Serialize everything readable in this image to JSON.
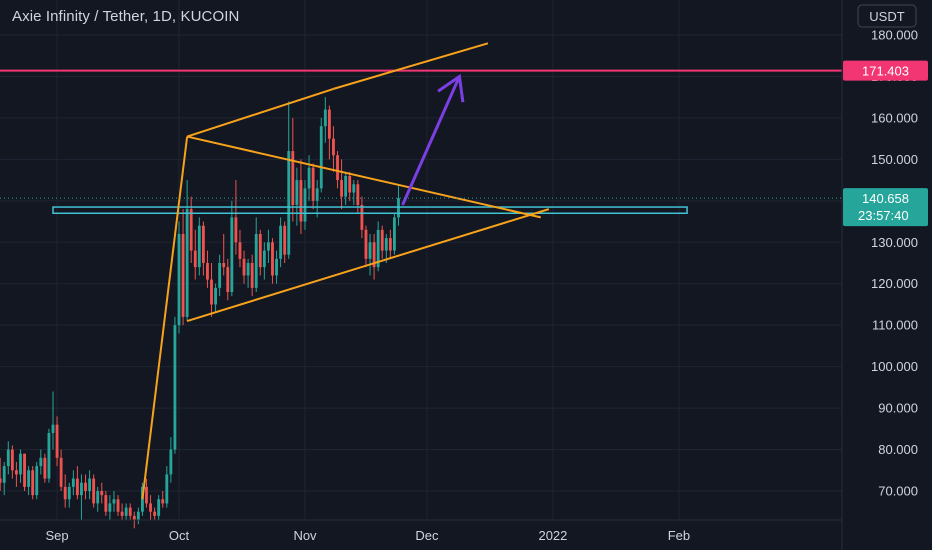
{
  "header": {
    "symbol": "Axie Infinity / Tether",
    "separator": ", ",
    "interval": "1D",
    "exchange": "KUCOIN"
  },
  "currency": "USDT",
  "price_axis": {
    "tick_labels": [
      "180.000",
      "170.000",
      "160.000",
      "150.000",
      "140.000",
      "130.000",
      "120.000",
      "110.000",
      "100.000",
      "90.000",
      "80.000",
      "70.000"
    ]
  },
  "time_axis": {
    "tick_labels": [
      "Sep",
      "Oct",
      "Nov",
      "Dec",
      "2022",
      "Feb"
    ]
  },
  "last_price": {
    "value": "140.658",
    "countdown": "23:57:40",
    "color": "#26a69a"
  },
  "horizontal_level": {
    "value": "171.403",
    "color": "#f23674"
  },
  "colors": {
    "background": "#131722",
    "up_candle": "#26a69a",
    "down_candle": "#ef5350",
    "trendline": "#f7a21b",
    "zone": "#3fc4d4",
    "arrow": "#7b3fe4",
    "grid": "#1f2433"
  },
  "chart_data": {
    "type": "candlestick",
    "title": "Axie Infinity / Tether, 1D, KUCOIN",
    "y_unit": "USDT",
    "ylim": [
      63,
      187
    ],
    "xlim": [
      "2021-08-17",
      "2022-02-28"
    ],
    "grid": true,
    "ohlc": [
      [
        "2021-08-17",
        70,
        75,
        68,
        73
      ],
      [
        "2021-08-18",
        73,
        78,
        70,
        72
      ],
      [
        "2021-08-19",
        72,
        77,
        69,
        76
      ],
      [
        "2021-08-20",
        76,
        82,
        74,
        80
      ],
      [
        "2021-08-21",
        80,
        81,
        73,
        75
      ],
      [
        "2021-08-22",
        75,
        77,
        71,
        74
      ],
      [
        "2021-08-23",
        74,
        80,
        72,
        79
      ],
      [
        "2021-08-24",
        79,
        79,
        70,
        71
      ],
      [
        "2021-08-25",
        71,
        76,
        69,
        75
      ],
      [
        "2021-08-26",
        75,
        76,
        68,
        69
      ],
      [
        "2021-08-27",
        69,
        77,
        68,
        76
      ],
      [
        "2021-08-28",
        76,
        80,
        74,
        78
      ],
      [
        "2021-08-29",
        78,
        79,
        72,
        73
      ],
      [
        "2021-08-30",
        73,
        85,
        72,
        84
      ],
      [
        "2021-08-31",
        84,
        94,
        80,
        86
      ],
      [
        "2021-09-01",
        86,
        88,
        76,
        78
      ],
      [
        "2021-09-02",
        78,
        80,
        70,
        71
      ],
      [
        "2021-09-03",
        71,
        74,
        66,
        68
      ],
      [
        "2021-09-04",
        68,
        72,
        66,
        71
      ],
      [
        "2021-09-05",
        71,
        75,
        69,
        73
      ],
      [
        "2021-09-06",
        73,
        76,
        68,
        69
      ],
      [
        "2021-09-07",
        69,
        74,
        63,
        72
      ],
      [
        "2021-09-08",
        72,
        74,
        68,
        70
      ],
      [
        "2021-09-09",
        70,
        75,
        68,
        73
      ],
      [
        "2021-09-10",
        73,
        74,
        66,
        67
      ],
      [
        "2021-09-11",
        67,
        71,
        65,
        70
      ],
      [
        "2021-09-12",
        70,
        72,
        67,
        69
      ],
      [
        "2021-09-13",
        69,
        70,
        64,
        65
      ],
      [
        "2021-09-14",
        65,
        69,
        63,
        67
      ],
      [
        "2021-09-15",
        67,
        70,
        65,
        68
      ],
      [
        "2021-09-16",
        68,
        69,
        64,
        65
      ],
      [
        "2021-09-17",
        65,
        67,
        63,
        64
      ],
      [
        "2021-09-18",
        64,
        67,
        63,
        66
      ],
      [
        "2021-09-19",
        66,
        67,
        63,
        64
      ],
      [
        "2021-09-20",
        64,
        65,
        61,
        63
      ],
      [
        "2021-09-21",
        63,
        66,
        62,
        65
      ],
      [
        "2021-09-22",
        65,
        72,
        64,
        71
      ],
      [
        "2021-09-23",
        71,
        73,
        66,
        67
      ],
      [
        "2021-09-24",
        67,
        69,
        63,
        65
      ],
      [
        "2021-09-25",
        65,
        66,
        63,
        64
      ],
      [
        "2021-09-26",
        64,
        69,
        63,
        68
      ],
      [
        "2021-09-27",
        68,
        70,
        66,
        67
      ],
      [
        "2021-09-28",
        67,
        76,
        66,
        74
      ],
      [
        "2021-09-29",
        74,
        83,
        72,
        80
      ],
      [
        "2021-09-30",
        80,
        112,
        79,
        110
      ],
      [
        "2021-10-01",
        110,
        135,
        108,
        132
      ],
      [
        "2021-10-02",
        132,
        138,
        110,
        112
      ],
      [
        "2021-10-03",
        112,
        145,
        111,
        138
      ],
      [
        "2021-10-04",
        138,
        141,
        125,
        128
      ],
      [
        "2021-10-05",
        128,
        133,
        121,
        124
      ],
      [
        "2021-10-06",
        124,
        136,
        122,
        134
      ],
      [
        "2021-10-07",
        134,
        135,
        122,
        125
      ],
      [
        "2021-10-08",
        125,
        128,
        119,
        121
      ],
      [
        "2021-10-09",
        121,
        125,
        112,
        115
      ],
      [
        "2021-10-10",
        115,
        120,
        113,
        119
      ],
      [
        "2021-10-11",
        119,
        127,
        117,
        125
      ],
      [
        "2021-10-12",
        125,
        132,
        122,
        124
      ],
      [
        "2021-10-13",
        124,
        126,
        116,
        118
      ],
      [
        "2021-10-14",
        118,
        140,
        117,
        136
      ],
      [
        "2021-10-15",
        136,
        145,
        127,
        130
      ],
      [
        "2021-10-16",
        130,
        133,
        124,
        126
      ],
      [
        "2021-10-17",
        126,
        128,
        120,
        122
      ],
      [
        "2021-10-18",
        122,
        126,
        119,
        125
      ],
      [
        "2021-10-19",
        125,
        127,
        117,
        119
      ],
      [
        "2021-10-20",
        119,
        136,
        118,
        132
      ],
      [
        "2021-10-21",
        132,
        133,
        122,
        124
      ],
      [
        "2021-10-22",
        124,
        130,
        121,
        128
      ],
      [
        "2021-10-23",
        128,
        133,
        125,
        130
      ],
      [
        "2021-10-24",
        130,
        131,
        120,
        122
      ],
      [
        "2021-10-25",
        122,
        128,
        120,
        126
      ],
      [
        "2021-10-26",
        126,
        136,
        124,
        134
      ],
      [
        "2021-10-27",
        134,
        135,
        125,
        127
      ],
      [
        "2021-10-28",
        127,
        164,
        126,
        152
      ],
      [
        "2021-10-29",
        152,
        160,
        135,
        139
      ],
      [
        "2021-10-30",
        139,
        148,
        134,
        145
      ],
      [
        "2021-10-31",
        145,
        150,
        132,
        135
      ],
      [
        "2021-11-01",
        135,
        145,
        133,
        143
      ],
      [
        "2021-11-02",
        143,
        151,
        140,
        148
      ],
      [
        "2021-11-03",
        148,
        149,
        138,
        140
      ],
      [
        "2021-11-04",
        140,
        145,
        136,
        143
      ],
      [
        "2021-11-05",
        143,
        160,
        142,
        158
      ],
      [
        "2021-11-06",
        158,
        165,
        154,
        162
      ],
      [
        "2021-11-07",
        162,
        163,
        150,
        155
      ],
      [
        "2021-11-08",
        155,
        158,
        147,
        151
      ],
      [
        "2021-11-09",
        151,
        152,
        143,
        145
      ],
      [
        "2021-11-10",
        145,
        150,
        138,
        141
      ],
      [
        "2021-11-11",
        141,
        147,
        139,
        146
      ],
      [
        "2021-11-12",
        146,
        147,
        140,
        142
      ],
      [
        "2021-11-13",
        142,
        145,
        139,
        144
      ],
      [
        "2021-11-14",
        144,
        145,
        137,
        139
      ],
      [
        "2021-11-15",
        139,
        141,
        131,
        133
      ],
      [
        "2021-11-16",
        133,
        134,
        124,
        126
      ],
      [
        "2021-11-17",
        126,
        132,
        122,
        130
      ],
      [
        "2021-11-18",
        130,
        132,
        121,
        124
      ],
      [
        "2021-11-19",
        124,
        135,
        123,
        133
      ],
      [
        "2021-11-20",
        133,
        134,
        126,
        128
      ],
      [
        "2021-11-21",
        128,
        132,
        125,
        131
      ],
      [
        "2021-11-22",
        131,
        133,
        126,
        128
      ],
      [
        "2021-11-23",
        128,
        137,
        127,
        136
      ],
      [
        "2021-11-24",
        136,
        144,
        134,
        140.658
      ]
    ],
    "annotations": {
      "trendlines": [
        {
          "from": [
            "2021-09-22",
            68
          ],
          "to": [
            "2021-10-03",
            155.5
          ]
        },
        {
          "from": [
            "2021-10-03",
            155.5
          ],
          "to": [
            "2021-11-08",
            167
          ]
        },
        {
          "from": [
            "2021-11-08",
            167
          ],
          "to": [
            "2021-12-16",
            178
          ]
        },
        {
          "from": [
            "2021-10-03",
            155.5
          ],
          "to": [
            "2021-12-29",
            136
          ]
        },
        {
          "from": [
            "2021-10-03",
            111
          ],
          "to": [
            "2021-12-31",
            138
          ]
        }
      ],
      "zone": {
        "from": "2021-08-31",
        "to": "2022-02-03",
        "low": 137,
        "high": 138.5
      },
      "arrow": {
        "from": [
          "2021-11-25",
          139
        ],
        "to": [
          "2021-12-09",
          170
        ]
      }
    }
  }
}
